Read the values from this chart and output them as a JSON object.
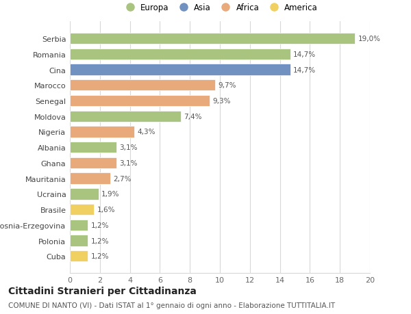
{
  "categories": [
    "Cuba",
    "Polonia",
    "Bosnia-Erzegovina",
    "Brasile",
    "Ucraina",
    "Mauritania",
    "Ghana",
    "Albania",
    "Nigeria",
    "Moldova",
    "Senegal",
    "Marocco",
    "Cina",
    "Romania",
    "Serbia"
  ],
  "values": [
    1.2,
    1.2,
    1.2,
    1.6,
    1.9,
    2.7,
    3.1,
    3.1,
    4.3,
    7.4,
    9.3,
    9.7,
    14.7,
    14.7,
    19.0
  ],
  "labels": [
    "1,2%",
    "1,2%",
    "1,2%",
    "1,6%",
    "1,9%",
    "2,7%",
    "3,1%",
    "3,1%",
    "4,3%",
    "7,4%",
    "9,3%",
    "9,7%",
    "14,7%",
    "14,7%",
    "19,0%"
  ],
  "continent": [
    "America",
    "Europa",
    "Europa",
    "America",
    "Europa",
    "Africa",
    "Africa",
    "Europa",
    "Africa",
    "Europa",
    "Africa",
    "Africa",
    "Asia",
    "Europa",
    "Europa"
  ],
  "colors": {
    "Europa": "#a8c47e",
    "Asia": "#7191c0",
    "Africa": "#e8aa7a",
    "America": "#f0d060"
  },
  "bar_edge_color": "white",
  "background_color": "#ffffff",
  "grid_color": "#d8d8d8",
  "title": "Cittadini Stranieri per Cittadinanza",
  "subtitle": "COMUNE DI NANTO (VI) - Dati ISTAT al 1° gennaio di ogni anno - Elaborazione TUTTITALIA.IT",
  "xlim": [
    0,
    20
  ],
  "xticks": [
    0,
    2,
    4,
    6,
    8,
    10,
    12,
    14,
    16,
    18,
    20
  ],
  "title_fontsize": 10,
  "subtitle_fontsize": 7.5,
  "label_fontsize": 7.5,
  "tick_fontsize": 8,
  "legend_fontsize": 8.5,
  "bar_height": 0.72
}
